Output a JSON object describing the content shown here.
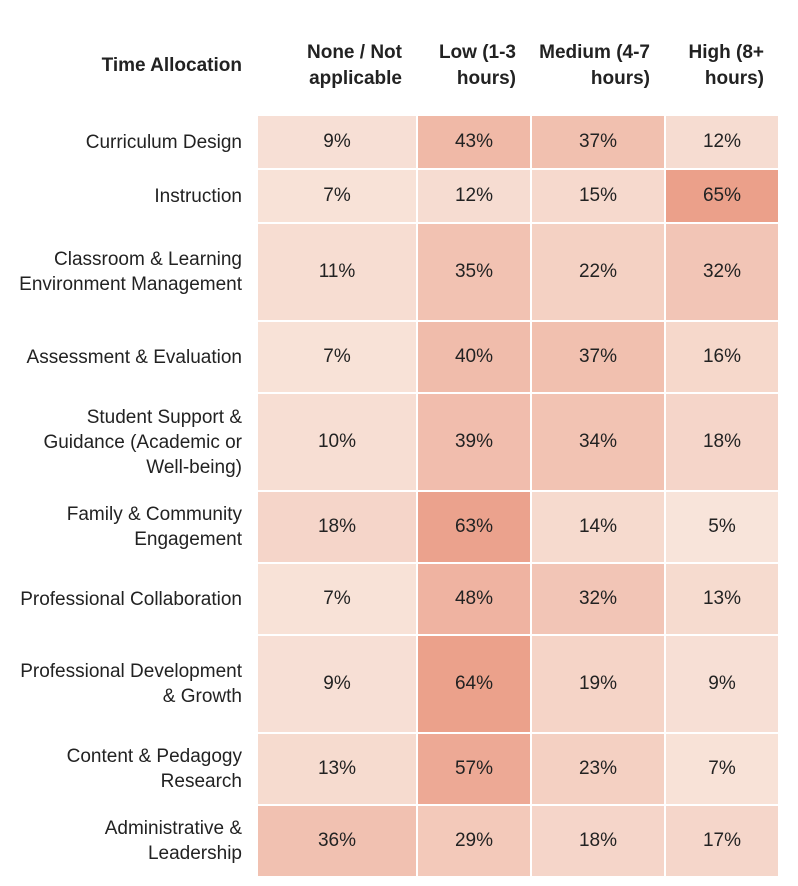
{
  "chart_data": {
    "type": "heatmap",
    "title": "Time Allocation",
    "columns": [
      "None / Not applicable",
      "Low (1-3 hours)",
      "Medium (4-7 hours)",
      "High (8+ hours)"
    ],
    "rows": [
      {
        "label": "Curriculum Design",
        "values": [
          9,
          43,
          37,
          12
        ]
      },
      {
        "label": "Instruction",
        "values": [
          7,
          12,
          15,
          65
        ]
      },
      {
        "label": "Classroom & Learning Environment Management",
        "values": [
          11,
          35,
          22,
          32
        ]
      },
      {
        "label": "Assessment & Evaluation",
        "values": [
          7,
          40,
          37,
          16
        ]
      },
      {
        "label": "Student Support & Guidance (Academic or Well-being)",
        "values": [
          10,
          39,
          34,
          18
        ]
      },
      {
        "label": "Family & Community Engagement",
        "values": [
          18,
          63,
          14,
          5
        ]
      },
      {
        "label": "Professional Collaboration",
        "values": [
          7,
          48,
          32,
          13
        ]
      },
      {
        "label": "Professional Development & Growth",
        "values": [
          9,
          64,
          19,
          9
        ]
      },
      {
        "label": "Content & Pedagogy Research",
        "values": [
          13,
          57,
          23,
          7
        ]
      },
      {
        "label": "Administrative & Leadership",
        "values": [
          36,
          29,
          18,
          17
        ]
      }
    ],
    "value_suffix": "%",
    "color_range": {
      "min": 5,
      "max": 65,
      "low_color": "#f8e4da",
      "high_color": "#eba08a"
    }
  }
}
